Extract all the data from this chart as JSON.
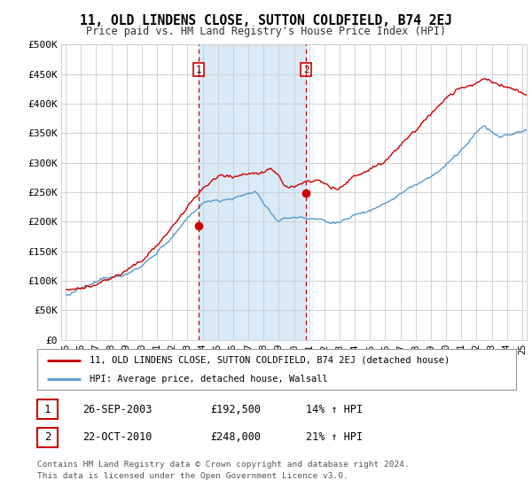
{
  "title": "11, OLD LINDENS CLOSE, SUTTON COLDFIELD, B74 2EJ",
  "subtitle": "Price paid vs. HM Land Registry's House Price Index (HPI)",
  "ylabel_ticks": [
    "£0",
    "£50K",
    "£100K",
    "£150K",
    "£200K",
    "£250K",
    "£300K",
    "£350K",
    "£400K",
    "£450K",
    "£500K"
  ],
  "ytick_values": [
    0,
    50000,
    100000,
    150000,
    200000,
    250000,
    300000,
    350000,
    400000,
    450000,
    500000
  ],
  "ylim": [
    0,
    500000
  ],
  "xlim_start": 1995.0,
  "xlim_end": 2025.3,
  "red_line_color": "#cc0000",
  "blue_line_color": "#5599cc",
  "blue_fill_color": "#daeaf7",
  "vline_color": "#cc0000",
  "marker1_date": 2003.73,
  "marker2_date": 2010.8,
  "marker1_price": 192500,
  "marker2_price": 248000,
  "legend_label_red": "11, OLD LINDENS CLOSE, SUTTON COLDFIELD, B74 2EJ (detached house)",
  "legend_label_blue": "HPI: Average price, detached house, Walsall",
  "table_row1": [
    "1",
    "26-SEP-2003",
    "£192,500",
    "14% ↑ HPI"
  ],
  "table_row2": [
    "2",
    "22-OCT-2010",
    "£248,000",
    "21% ↑ HPI"
  ],
  "footer_line1": "Contains HM Land Registry data © Crown copyright and database right 2024.",
  "footer_line2": "This data is licensed under the Open Government Licence v3.0.",
  "background_color": "#ffffff",
  "plot_bg_color": "#ffffff",
  "grid_color": "#cccccc",
  "xtick_years": [
    1995,
    1996,
    1997,
    1998,
    1999,
    2000,
    2001,
    2002,
    2003,
    2004,
    2005,
    2006,
    2007,
    2008,
    2009,
    2010,
    2011,
    2012,
    2013,
    2014,
    2015,
    2016,
    2017,
    2018,
    2019,
    2020,
    2021,
    2022,
    2023,
    2024,
    2025
  ]
}
